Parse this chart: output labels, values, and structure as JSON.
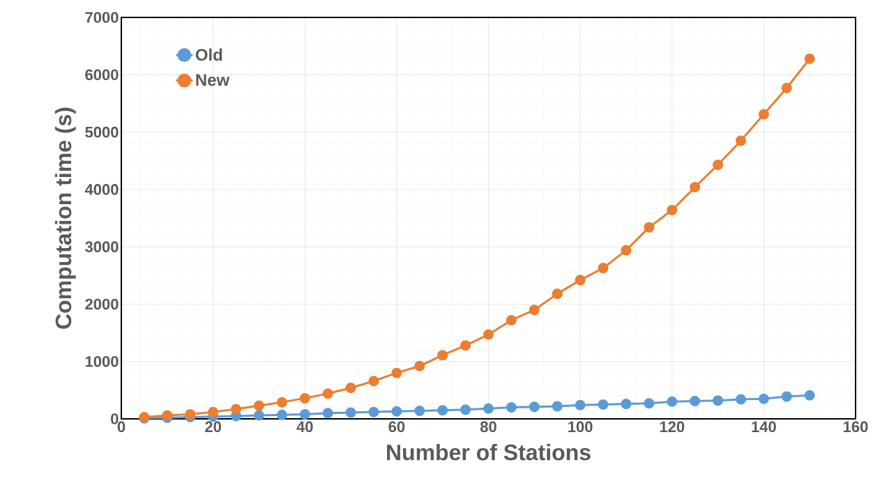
{
  "chart_data": {
    "type": "line",
    "xlabel": "Number of Stations",
    "ylabel": "Computation time (s)",
    "x": [
      5,
      10,
      15,
      20,
      25,
      30,
      35,
      40,
      45,
      50,
      55,
      60,
      65,
      70,
      75,
      80,
      85,
      90,
      95,
      100,
      105,
      110,
      115,
      120,
      125,
      130,
      135,
      140,
      145,
      150
    ],
    "series": [
      {
        "name": "Old",
        "color": "#5b9bd5",
        "values": [
          10,
          20,
          30,
          40,
          50,
          60,
          70,
          80,
          100,
          110,
          120,
          130,
          140,
          150,
          160,
          180,
          200,
          210,
          220,
          240,
          250,
          260,
          270,
          300,
          310,
          320,
          340,
          350,
          390,
          410
        ]
      },
      {
        "name": "New",
        "color": "#ed7d31",
        "values": [
          30,
          60,
          80,
          120,
          170,
          230,
          290,
          360,
          440,
          540,
          660,
          800,
          920,
          1110,
          1280,
          1470,
          1720,
          1900,
          2180,
          2420,
          2630,
          2940,
          3340,
          3640,
          4040,
          4430,
          4850,
          5310,
          5770,
          6280
        ]
      }
    ],
    "xlim": [
      0,
      160
    ],
    "xticks": [
      0,
      20,
      40,
      60,
      80,
      100,
      120,
      140,
      160
    ],
    "ylim": [
      0,
      7000
    ],
    "yticks": [
      0,
      1000,
      2000,
      3000,
      4000,
      5000,
      6000,
      7000
    ],
    "grid": true,
    "legend": "top left",
    "marker": "circle",
    "line_style": "solid"
  }
}
